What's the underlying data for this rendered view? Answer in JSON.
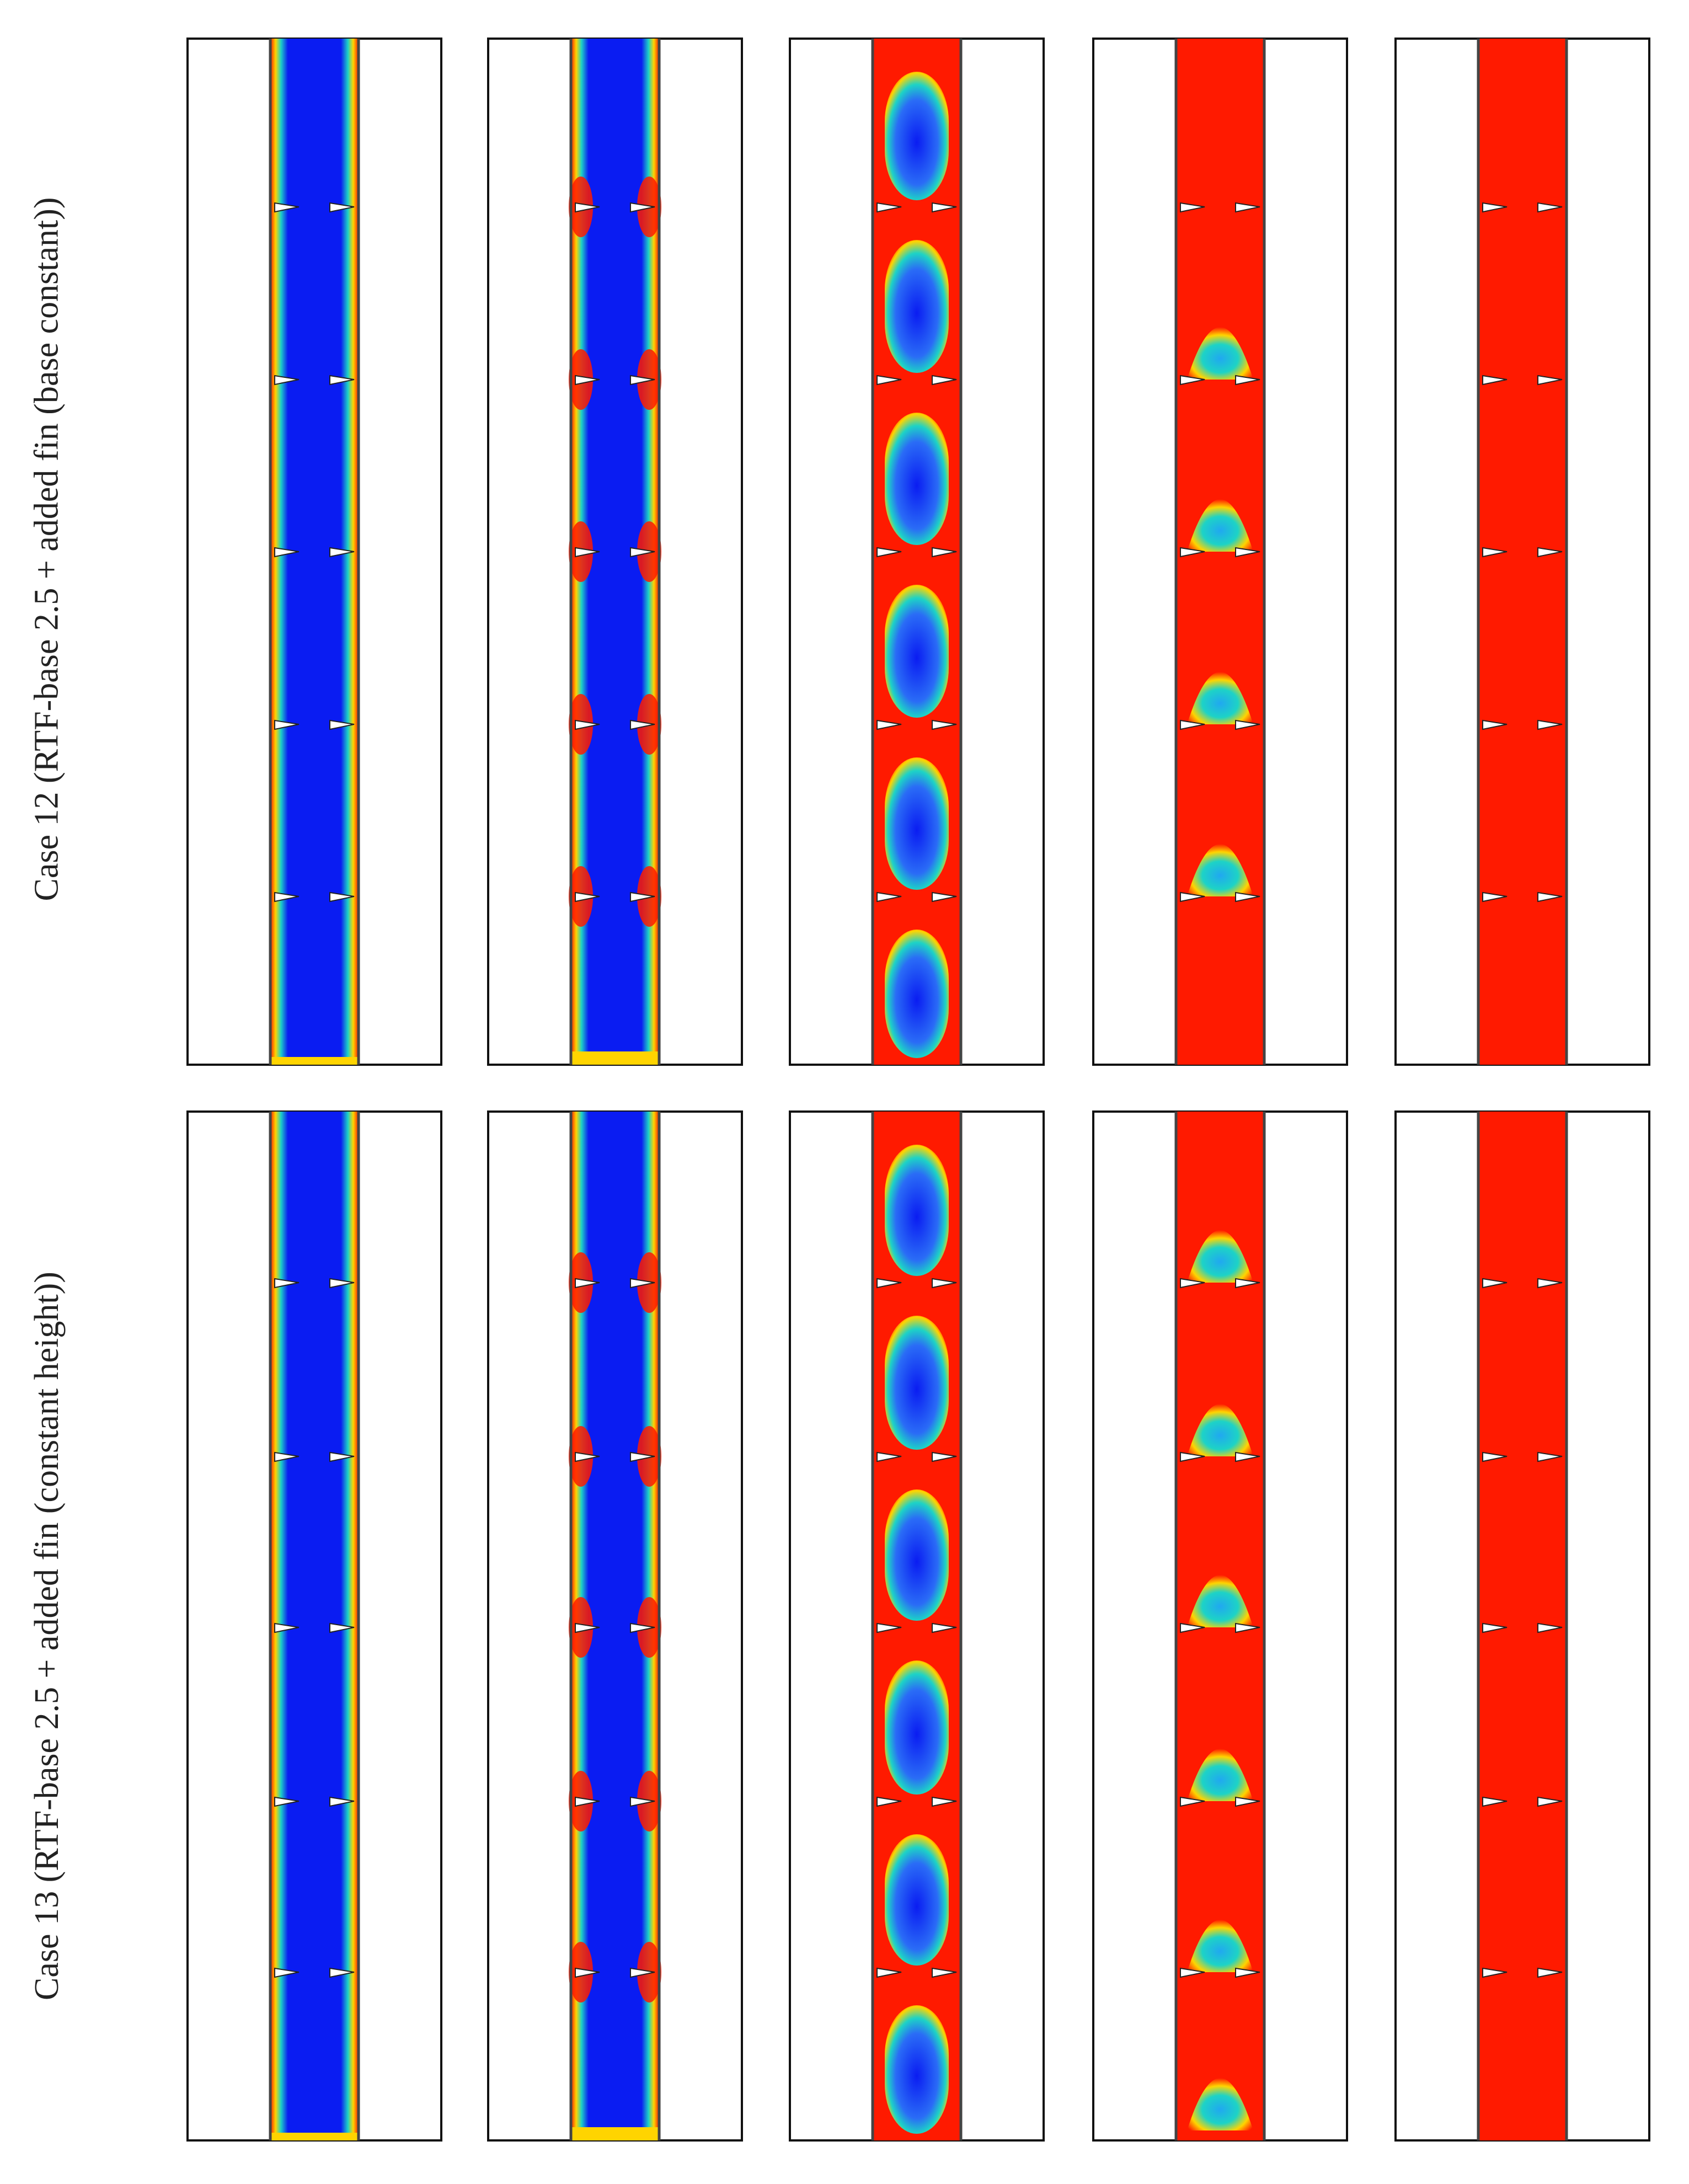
{
  "rows": [
    {
      "label": "Case 12 (RTF-base 2.5 + added fin (base constant))"
    },
    {
      "label": "Case 13 (RTF-base 2.5 + added fin (constant height))"
    }
  ],
  "frames": [
    "frame-1",
    "frame-2",
    "frame-3",
    "frame-4",
    "frame-5"
  ],
  "colors": {
    "solid_phase": "#0a1cf2",
    "liquid_phase": "#ff1a00",
    "interface_mid": "#1dd3c6",
    "interface_warm": "#ffd400",
    "frame_border": "#111111"
  }
}
